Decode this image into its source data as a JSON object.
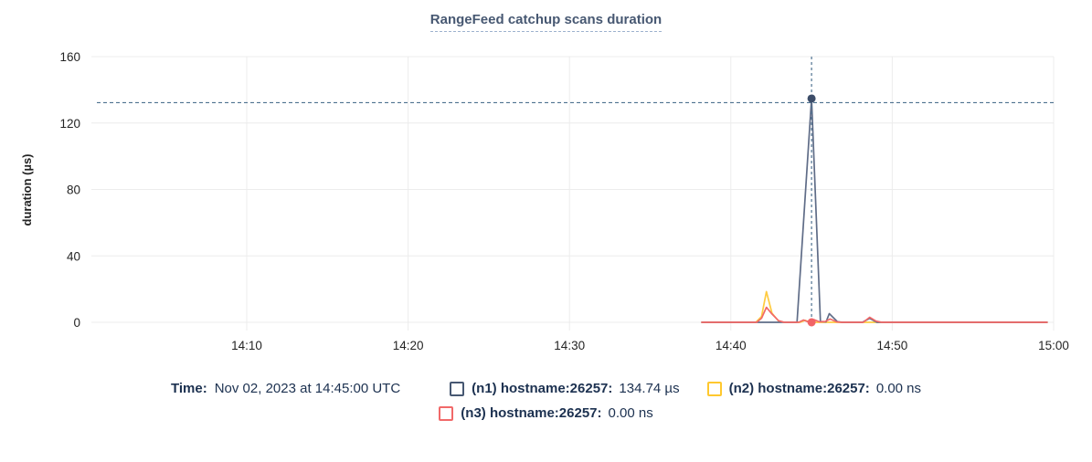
{
  "chart_data": {
    "type": "line",
    "title": "RangeFeed catchup scans duration",
    "ylabel": "duration (µs)",
    "ylim": [
      0,
      160
    ],
    "y_ticks": [
      0,
      40,
      80,
      120,
      160
    ],
    "grid": true,
    "t_unit": "minutes after 14:00 UTC",
    "x_ticks": [
      {
        "label": "14:10",
        "t": 10
      },
      {
        "label": "14:20",
        "t": 20
      },
      {
        "label": "14:30",
        "t": 30
      },
      {
        "label": "14:40",
        "t": 40
      },
      {
        "label": "14:50",
        "t": 50
      },
      {
        "label": "15:00",
        "t": 60
      }
    ],
    "series": [
      {
        "id": "n1",
        "name": "(n1) hostname:26257",
        "color": "#5F6C87",
        "hover_value_label": "134.74 µs",
        "points": [
          [
            38.2,
            0
          ],
          [
            44.1,
            0
          ],
          [
            45,
            134.74
          ],
          [
            45.55,
            0.5
          ],
          [
            45.9,
            0.3
          ],
          [
            46.1,
            5.2
          ],
          [
            46.6,
            0.4
          ],
          [
            46.9,
            0
          ],
          [
            48.15,
            0
          ],
          [
            48.6,
            2.4
          ],
          [
            49.05,
            0
          ],
          [
            59.6,
            0
          ]
        ]
      },
      {
        "id": "n2",
        "name": "(n2) hostname:26257",
        "color": "#FFCB40",
        "hover_value_label": "0.00 ns",
        "points": [
          [
            38.2,
            0
          ],
          [
            41.55,
            0
          ],
          [
            41.9,
            3.5
          ],
          [
            42.2,
            18.5
          ],
          [
            42.55,
            5.5
          ],
          [
            42.95,
            0.8
          ],
          [
            43.3,
            0
          ],
          [
            44.3,
            0
          ],
          [
            44.6,
            1.2
          ],
          [
            44.9,
            0
          ],
          [
            59.6,
            0
          ]
        ]
      },
      {
        "id": "n3",
        "name": "(n3) hostname:26257",
        "color": "#F16969",
        "hover_value_label": "0.00 ns",
        "points": [
          [
            38.2,
            0
          ],
          [
            41.6,
            0
          ],
          [
            41.9,
            2.5
          ],
          [
            42.2,
            9
          ],
          [
            42.55,
            5
          ],
          [
            42.95,
            1
          ],
          [
            43.3,
            0
          ],
          [
            44.2,
            0
          ],
          [
            44.5,
            1.4
          ],
          [
            44.8,
            0.2
          ],
          [
            45.15,
            1.6
          ],
          [
            45.5,
            0.3
          ],
          [
            45.85,
            0.5
          ],
          [
            46.15,
            2
          ],
          [
            46.55,
            0.3
          ],
          [
            46.85,
            0
          ],
          [
            48.2,
            0
          ],
          [
            48.6,
            3
          ],
          [
            49,
            0.7
          ],
          [
            49.35,
            0
          ],
          [
            59.6,
            0
          ]
        ]
      }
    ],
    "hover": {
      "t": 45,
      "time_label": "Nov 02, 2023 at 14:45:00 UTC",
      "hline_value": 134.74,
      "crosshair_color": "#4E7290",
      "dots": [
        {
          "series": "n1",
          "value": 134.74,
          "color": "#3C4C68"
        },
        {
          "series": "n3",
          "value": 0,
          "color": "#F16366"
        }
      ]
    }
  },
  "legend": {
    "time_label": "Time:",
    "time_value": "Nov 02, 2023 at 14:45:00 UTC",
    "items": [
      {
        "label": "(n1) hostname:26257:",
        "value": "134.74 µs",
        "marker_css": "border-color:#475872"
      },
      {
        "label": "(n2) hostname:26257:",
        "value": "0.00 ns",
        "marker_css": "border-color:#FFC82E"
      },
      {
        "label": "(n3) hostname:26257:",
        "value": "0.00 ns",
        "marker_css": "border-color:#F16969"
      }
    ]
  },
  "colors": {
    "grid": "#ECECEC",
    "tick_text": "#242424",
    "axis_label": "#242424",
    "title_text": "#475872",
    "title_underline": "#9DB2CE",
    "legend_text": "#1C3150",
    "background": "#FFFFFF"
  }
}
